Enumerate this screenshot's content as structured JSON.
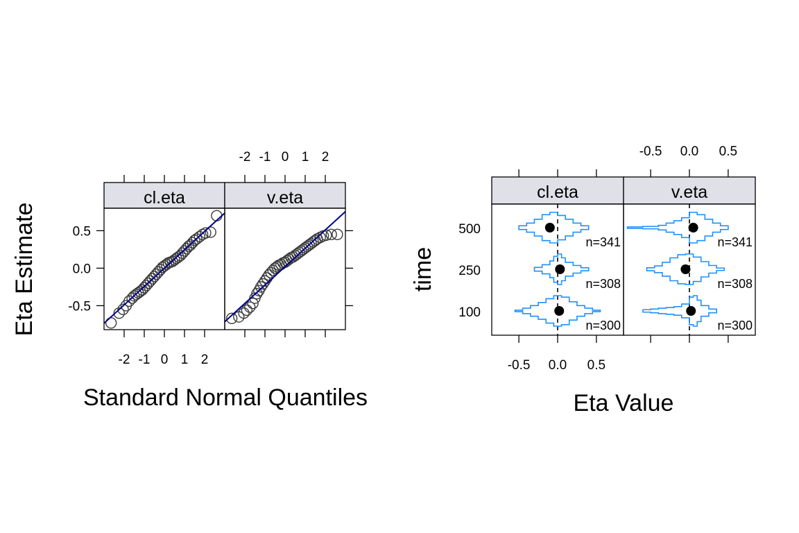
{
  "chart_data": [
    {
      "type": "scatter",
      "subtype": "qq-plot",
      "panels": [
        "cl.eta",
        "v.eta"
      ],
      "xlabel": "Standard Normal Quantiles",
      "ylabel": "Eta Estimate",
      "x_ticks": [
        -2,
        -1,
        0,
        1,
        2
      ],
      "x_tick_labels": [
        "-2",
        "-1",
        "0",
        "1",
        "2"
      ],
      "y_ticks": [
        -0.5,
        0.0,
        0.5
      ],
      "y_tick_labels": [
        "-0.5",
        "0.0",
        "0.5"
      ],
      "xlim": [
        -3.0,
        3.0
      ],
      "ylim": [
        -0.82,
        0.8
      ],
      "reference_line": [
        {
          "panel": "cl.eta",
          "slope": 0.245,
          "intercept": 0.0
        },
        {
          "panel": "v.eta",
          "slope": 0.245,
          "intercept": 0.02
        }
      ],
      "series": [
        {
          "name": "cl.eta",
          "points": [
            [
              -2.65,
              -0.73
            ],
            [
              -2.25,
              -0.6
            ],
            [
              -2.05,
              -0.55
            ],
            [
              -1.9,
              -0.5
            ],
            [
              -1.75,
              -0.44
            ],
            [
              -1.6,
              -0.4
            ],
            [
              -1.5,
              -0.37
            ],
            [
              -1.4,
              -0.35
            ],
            [
              -1.3,
              -0.33
            ],
            [
              -1.2,
              -0.31
            ],
            [
              -1.1,
              -0.29
            ],
            [
              -1.0,
              -0.26
            ],
            [
              -0.9,
              -0.23
            ],
            [
              -0.8,
              -0.2
            ],
            [
              -0.7,
              -0.17
            ],
            [
              -0.6,
              -0.14
            ],
            [
              -0.5,
              -0.11
            ],
            [
              -0.4,
              -0.08
            ],
            [
              -0.3,
              -0.05
            ],
            [
              -0.2,
              -0.02
            ],
            [
              -0.1,
              0.01
            ],
            [
              0.0,
              0.03
            ],
            [
              0.1,
              0.05
            ],
            [
              0.2,
              0.07
            ],
            [
              0.3,
              0.08
            ],
            [
              0.4,
              0.09
            ],
            [
              0.5,
              0.11
            ],
            [
              0.6,
              0.13
            ],
            [
              0.7,
              0.15
            ],
            [
              0.8,
              0.17
            ],
            [
              0.9,
              0.2
            ],
            [
              1.0,
              0.23
            ],
            [
              1.1,
              0.26
            ],
            [
              1.2,
              0.29
            ],
            [
              1.3,
              0.31
            ],
            [
              1.4,
              0.34
            ],
            [
              1.5,
              0.37
            ],
            [
              1.6,
              0.39
            ],
            [
              1.75,
              0.42
            ],
            [
              1.9,
              0.45
            ],
            [
              2.05,
              0.47
            ],
            [
              2.3,
              0.48
            ],
            [
              2.6,
              0.7
            ]
          ]
        },
        {
          "name": "v.eta",
          "points": [
            [
              -2.65,
              -0.67
            ],
            [
              -2.3,
              -0.65
            ],
            [
              -2.05,
              -0.6
            ],
            [
              -1.9,
              -0.56
            ],
            [
              -1.75,
              -0.52
            ],
            [
              -1.6,
              -0.47
            ],
            [
              -1.5,
              -0.4
            ],
            [
              -1.4,
              -0.34
            ],
            [
              -1.3,
              -0.3
            ],
            [
              -1.2,
              -0.25
            ],
            [
              -1.1,
              -0.21
            ],
            [
              -1.0,
              -0.17
            ],
            [
              -0.9,
              -0.13
            ],
            [
              -0.8,
              -0.09
            ],
            [
              -0.7,
              -0.06
            ],
            [
              -0.6,
              -0.03
            ],
            [
              -0.5,
              0.0
            ],
            [
              -0.4,
              0.02
            ],
            [
              -0.3,
              0.04
            ],
            [
              -0.2,
              0.05
            ],
            [
              -0.1,
              0.07
            ],
            [
              0.0,
              0.08
            ],
            [
              0.1,
              0.1
            ],
            [
              0.2,
              0.12
            ],
            [
              0.3,
              0.14
            ],
            [
              0.4,
              0.15
            ],
            [
              0.5,
              0.17
            ],
            [
              0.6,
              0.19
            ],
            [
              0.7,
              0.21
            ],
            [
              0.8,
              0.23
            ],
            [
              0.9,
              0.25
            ],
            [
              1.0,
              0.27
            ],
            [
              1.1,
              0.29
            ],
            [
              1.2,
              0.31
            ],
            [
              1.3,
              0.33
            ],
            [
              1.4,
              0.35
            ],
            [
              1.5,
              0.37
            ],
            [
              1.6,
              0.39
            ],
            [
              1.75,
              0.41
            ],
            [
              1.9,
              0.43
            ],
            [
              2.05,
              0.44
            ],
            [
              2.3,
              0.45
            ],
            [
              2.6,
              0.45
            ]
          ]
        }
      ],
      "colors": {
        "points": "#3a3a3a",
        "line": "#00008b",
        "strip": "#dfe0e8"
      }
    },
    {
      "type": "bar",
      "subtype": "violin-histogram",
      "panels": [
        "cl.eta",
        "v.eta"
      ],
      "categories": [
        "100",
        "250",
        "500"
      ],
      "xlabel": "Eta Value",
      "ylabel": "time",
      "x_ticks": [
        -0.5,
        0.0,
        0.5
      ],
      "x_tick_labels": [
        "-0.5",
        "0.0",
        "0.5"
      ],
      "xlim": [
        -0.85,
        0.85
      ],
      "n_labels": {
        "cl.eta": [
          "n=300",
          "n=308",
          "n=341"
        ],
        "v.eta": [
          "n=300",
          "n=308",
          "n=341"
        ]
      },
      "medians": {
        "cl.eta": [
          0.02,
          0.03,
          -0.1
        ],
        "v.eta": [
          0.02,
          -0.05,
          0.05
        ]
      },
      "histograms": {
        "cl.eta": [
          {
            "edges": [
              -0.55,
              -0.45,
              -0.35,
              -0.25,
              -0.15,
              -0.05,
              0.05,
              0.15,
              0.25,
              0.35,
              0.45,
              0.55
            ],
            "density": [
              0.05,
              0.18,
              0.35,
              0.55,
              0.8,
              1.0,
              0.9,
              0.6,
              0.35,
              0.18,
              0.05
            ]
          },
          {
            "edges": [
              -0.3,
              -0.2,
              -0.1,
              -0.05,
              0.0,
              0.05,
              0.1,
              0.2,
              0.3,
              0.4
            ],
            "density": [
              0.12,
              0.3,
              0.55,
              0.85,
              1.0,
              0.75,
              0.45,
              0.25,
              0.1
            ]
          },
          {
            "edges": [
              -0.5,
              -0.4,
              -0.3,
              -0.2,
              -0.1,
              0.0,
              0.1,
              0.2,
              0.3,
              0.4
            ],
            "density": [
              0.12,
              0.3,
              0.55,
              0.85,
              1.0,
              0.8,
              0.55,
              0.3,
              0.12
            ]
          }
        ],
        "v.eta": [
          {
            "edges": [
              -0.6,
              -0.5,
              -0.4,
              -0.3,
              -0.2,
              -0.1,
              0.0,
              0.05,
              0.1,
              0.15,
              0.25,
              0.35
            ],
            "density": [
              0.08,
              0.12,
              0.18,
              0.22,
              0.28,
              0.45,
              0.9,
              1.0,
              0.7,
              0.35,
              0.12
            ]
          },
          {
            "edges": [
              -0.55,
              -0.45,
              -0.35,
              -0.25,
              -0.15,
              -0.05,
              0.05,
              0.15,
              0.25,
              0.35,
              0.45
            ],
            "density": [
              0.1,
              0.22,
              0.45,
              0.75,
              0.95,
              1.0,
              0.8,
              0.5,
              0.25,
              0.08
            ]
          },
          {
            "edges": [
              -0.8,
              -0.6,
              -0.4,
              -0.3,
              -0.2,
              -0.1,
              0.0,
              0.1,
              0.2,
              0.3,
              0.4,
              0.5
            ],
            "density": [
              0.05,
              0.08,
              0.15,
              0.3,
              0.45,
              0.65,
              1.0,
              0.85,
              0.55,
              0.3,
              0.12
            ]
          }
        ]
      },
      "colors": {
        "outline": "#1e90ff",
        "median": "#000000",
        "strip": "#dfe0e8"
      }
    }
  ]
}
